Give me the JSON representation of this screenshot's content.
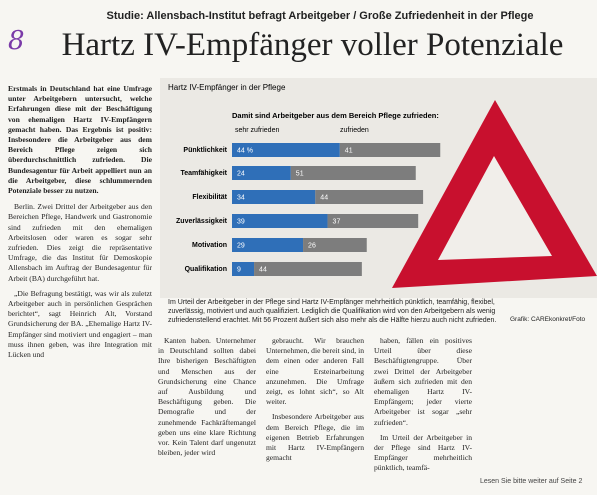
{
  "margin_note": "8",
  "kicker": "Studie: Allensbach-Institut befragt Arbeitgeber / Große Zufriedenheit in der Pflege",
  "headline": "Hartz IV-Empfänger voller Potenziale",
  "lead": "Erstmals in Deutschland hat eine Umfrage unter Arbeitgebern untersucht, welche Erfahrungen diese mit der Beschäftigung von ehemaligen Hartz IV-Empfängern gemacht haben. Das Ergebnis ist positiv: Insbesondere die Arbeitgeber aus dem Bereich Pflege zeigen sich überdurchschnittlich zufrieden. Die Bundesagentur für Arbeit appelliert nun an die Arbeitgeber, diese schlummernden Potenziale besser zu nutzen.",
  "columns": [
    [
      "Berlin. Zwei Drittel der Arbeitgeber aus den Bereichen Pflege, Handwerk und Gastronomie sind zufrieden mit den ehemaligen Arbeitslosen oder waren es sogar sehr zufrieden. Dies zeigt die repräsentative Umfrage, die das Institut für Demoskopie Allensbach im Auftrag der Bundesagentur für Arbeit (BA) durchgeführt hat.",
      "„Die Befragung bestätigt, was wir als zuletzt Arbeitgeber auch in persönlichen Gesprächen berichtet“, sagt Heinrich Alt, Vorstand Grundsicherung der BA. „Ehemalige Hartz IV-Empfänger sind motiviert und engagiert – man muss ihnen geben, was ihre Integration mit Lücken und"
    ],
    [
      "Kanten haben. Unternehmer in Deutschland sollten dabei Ihre bisherigen Beschäftigten und Menschen aus der Grundsicherung eine Chance auf Ausbildung und Beschäftigung geben. Die Demografie und der zunehmende Fachkräftemangel geben uns eine klare Richtung vor. Kein Talent darf ungenutzt bleiben, jeder wird"
    ],
    [
      "gebraucht. Wir brauchen Unternehmen, die bereit sind, in dem einen oder anderen Fall eine Ersteinarbeitung anzunehmen. Die Umfrage zeigt, es lohnt sich“, so Alt weiter.",
      "Insbesondere Arbeitgeber aus dem Bereich Pflege, die im eigenen Betrieb Erfahrungen mit Hartz IV-Empfängern gemacht"
    ],
    [
      "haben, fällen ein positives Urteil über diese Beschäftigtengruppe. Über zwei Drittel der Arbeitgeber äußern sich zufrieden mit den ehemaligen Hartz IV-Empfängern; jeder vierte Arbeitgeber ist sogar „sehr zufrieden“.",
      "Im Urteil der Arbeitgeber in der Pflege sind Hartz IV-Empfänger mehrheitlich pünktlich, teamfä-"
    ]
  ],
  "caption": "Im Urteil der Arbeitgeber in der Pflege sind Hartz IV-Empfänger mehrheitlich pünktlich, teamfähig, flexibel, zuverlässig, motiviert und auch qualifiziert. Lediglich die Qualifikation wird von den Arbeitgebern als wenig zufriedenstellend erachtet. Mit 56 Prozent äußert sich also mehr als die Hälfte hierzu auch nicht zufrieden.",
  "credit": "Grafik: CAREkonkret/Foto",
  "footer": "Lesen Sie bitte weiter auf Seite 2",
  "chart_data": {
    "type": "bar",
    "orientation": "horizontal",
    "stacked": true,
    "title": "Hartz IV-Empfänger in der Pflege",
    "subtitle": "Damit sind Arbeitgeber aus dem Bereich Pflege zufrieden:",
    "categories": [
      "Pünktlichkeit",
      "Teamfähigkeit",
      "Flexibilität",
      "Zuverlässigkeit",
      "Motivation",
      "Qualifikation"
    ],
    "series": [
      {
        "name": "sehr zufrieden",
        "color": "#2f6fb8",
        "values": [
          44,
          24,
          34,
          39,
          29,
          9
        ],
        "value_labels": [
          "44 %",
          "24",
          "34",
          "39",
          "29",
          "9"
        ]
      },
      {
        "name": "zufrieden",
        "color": "#7d7d7d",
        "values": [
          41,
          51,
          44,
          37,
          26,
          44
        ]
      }
    ]
  }
}
